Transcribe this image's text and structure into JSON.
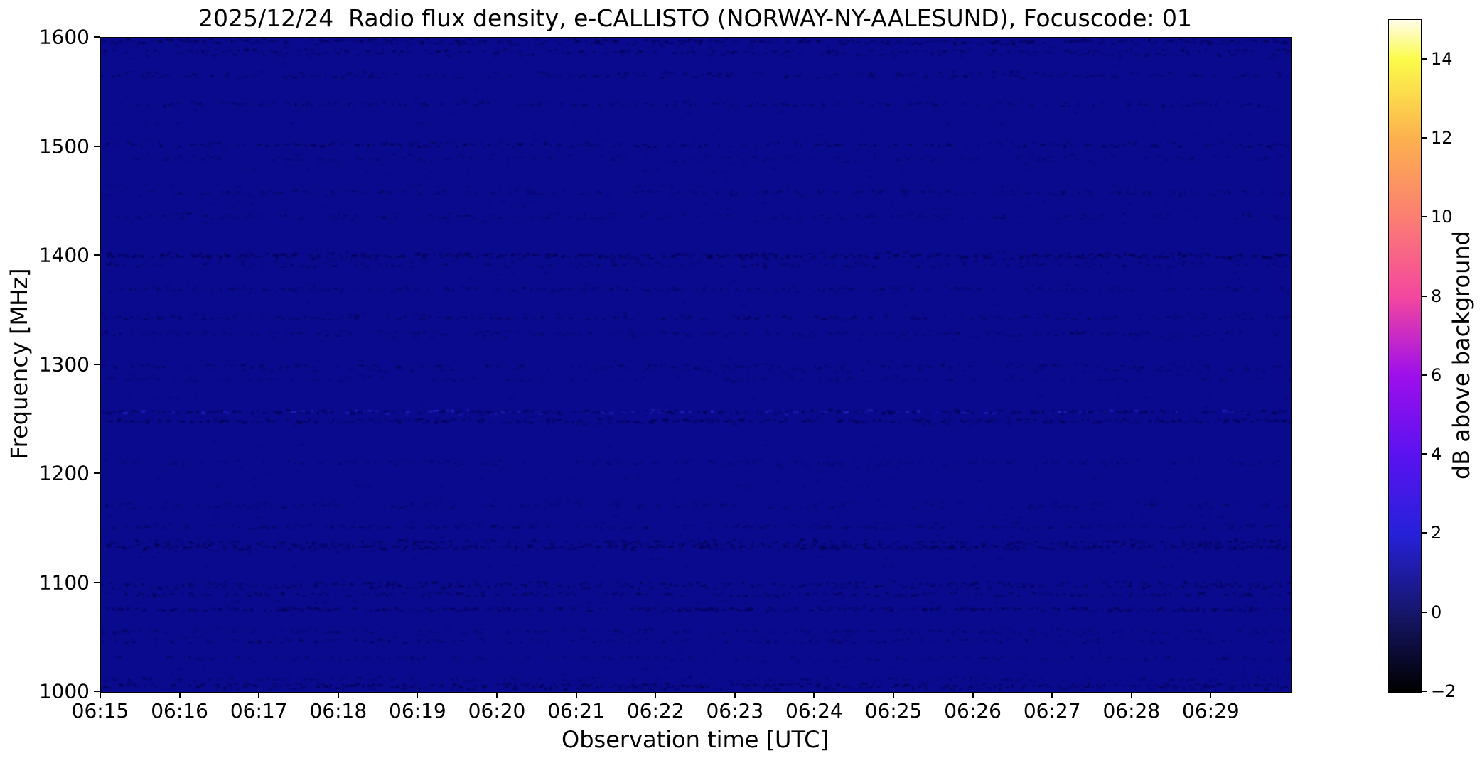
{
  "title": "2025/12/24  Radio flux density, e-CALLISTO (NORWAY-NY-AALESUND), Focuscode: 01",
  "xlabel": "Observation time [UTC]",
  "ylabel": "Frequency [MHz]",
  "axes": {
    "x": {
      "ticks": [
        "06:15",
        "06:16",
        "06:17",
        "06:18",
        "06:19",
        "06:20",
        "06:21",
        "06:22",
        "06:23",
        "06:24",
        "06:25",
        "06:26",
        "06:27",
        "06:28",
        "06:29"
      ],
      "range_utc": [
        "06:15",
        "06:30"
      ]
    },
    "y": {
      "ticks": [
        {
          "label": "1600",
          "value": 1600
        },
        {
          "label": "1500",
          "value": 1500
        },
        {
          "label": "1400",
          "value": 1400
        },
        {
          "label": "1300",
          "value": 1300
        },
        {
          "label": "1200",
          "value": 1200
        },
        {
          "label": "1100",
          "value": 1100
        },
        {
          "label": "1000",
          "value": 1000
        }
      ],
      "range_mhz": [
        1000,
        1600
      ]
    }
  },
  "colorbar": {
    "label": "dB above background",
    "min": -2,
    "max": 15,
    "ticks": [
      {
        "label": "14",
        "value": 14
      },
      {
        "label": "12",
        "value": 12
      },
      {
        "label": "10",
        "value": 10
      },
      {
        "label": "8",
        "value": 8
      },
      {
        "label": "6",
        "value": 6
      },
      {
        "label": "4",
        "value": 4
      },
      {
        "label": "2",
        "value": 2
      },
      {
        "label": "0",
        "value": 0
      },
      {
        "label": "−2",
        "value": -2
      }
    ],
    "stops": [
      {
        "value": -2,
        "color": "#000000"
      },
      {
        "value": 0,
        "color": "#16166b"
      },
      {
        "value": 2,
        "color": "#2621d9"
      },
      {
        "value": 4,
        "color": "#5a12f0"
      },
      {
        "value": 6,
        "color": "#9d0feb"
      },
      {
        "value": 8,
        "color": "#f4479e"
      },
      {
        "value": 10,
        "color": "#fb7e72"
      },
      {
        "value": 12,
        "color": "#fcb14e"
      },
      {
        "value": 14,
        "color": "#fbfb4a"
      },
      {
        "value": 15,
        "color": "#fffce8"
      }
    ]
  },
  "plot_base_color": "#0a0a8e",
  "chart_data": {
    "type": "heatmap",
    "title": "2025/12/24  Radio flux density, e-CALLISTO (NORWAY-NY-AALESUND), Focuscode: 01",
    "xlabel": "Observation time [UTC]",
    "ylabel": "Frequency [MHz]",
    "colorbar_label": "dB above background",
    "x_range_utc": [
      "06:15",
      "06:30"
    ],
    "x_tick_labels": [
      "06:15",
      "06:16",
      "06:17",
      "06:18",
      "06:19",
      "06:20",
      "06:21",
      "06:22",
      "06:23",
      "06:24",
      "06:25",
      "06:26",
      "06:27",
      "06:28",
      "06:29"
    ],
    "ylim_mhz": [
      1000,
      1600
    ],
    "y_tick_labels_mhz": [
      1600,
      1500,
      1400,
      1300,
      1200,
      1100,
      1000
    ],
    "value_scale_db": {
      "min": -2,
      "max": 15,
      "ticks": [
        14,
        12,
        10,
        8,
        6,
        4,
        2,
        0,
        -2
      ]
    },
    "colormap": "gnuplot2-like: black → navy → blue → violet → magenta → salmon → orange → yellow → white",
    "background_level_db": 0.7,
    "data_summary": "Quiet spectrum: near-uniform noise background about 0–1 dB above background over the full 1000–1600 MHz band for the entire 06:15–06:30 UTC interval; only faint horizontal RFI/readout dash striping, no solar radio burst features.",
    "noise_rows": [
      {
        "mhz": 1596,
        "intensity": 0.9
      },
      {
        "mhz": 1586,
        "intensity": 1.0
      },
      {
        "mhz": 1566,
        "intensity": 0.9
      },
      {
        "mhz": 1540,
        "intensity": 0.8
      },
      {
        "mhz": 1503,
        "intensity": 1.0
      },
      {
        "mhz": 1489,
        "intensity": 0.7
      },
      {
        "mhz": 1458,
        "intensity": 0.6
      },
      {
        "mhz": 1436,
        "intensity": 0.6
      },
      {
        "mhz": 1400,
        "intensity": 1.0
      },
      {
        "mhz": 1392,
        "intensity": 0.8
      },
      {
        "mhz": 1370,
        "intensity": 0.6
      },
      {
        "mhz": 1345,
        "intensity": 0.7
      },
      {
        "mhz": 1327,
        "intensity": 0.6
      },
      {
        "mhz": 1297,
        "intensity": 0.8
      },
      {
        "mhz": 1288,
        "intensity": 0.6
      },
      {
        "mhz": 1255,
        "intensity": 1.1,
        "bright": true
      },
      {
        "mhz": 1248,
        "intensity": 0.9
      },
      {
        "mhz": 1210,
        "intensity": 0.5
      },
      {
        "mhz": 1172,
        "intensity": 0.5
      },
      {
        "mhz": 1152,
        "intensity": 0.6
      },
      {
        "mhz": 1136,
        "intensity": 1.1
      },
      {
        "mhz": 1130,
        "intensity": 0.9
      },
      {
        "mhz": 1098,
        "intensity": 1.0
      },
      {
        "mhz": 1090,
        "intensity": 0.8
      },
      {
        "mhz": 1075,
        "intensity": 0.9
      },
      {
        "mhz": 1055,
        "intensity": 0.8
      },
      {
        "mhz": 1046,
        "intensity": 0.7
      },
      {
        "mhz": 1030,
        "intensity": 0.5
      },
      {
        "mhz": 1012,
        "intensity": 0.8
      },
      {
        "mhz": 1004,
        "intensity": 1.2
      }
    ]
  }
}
